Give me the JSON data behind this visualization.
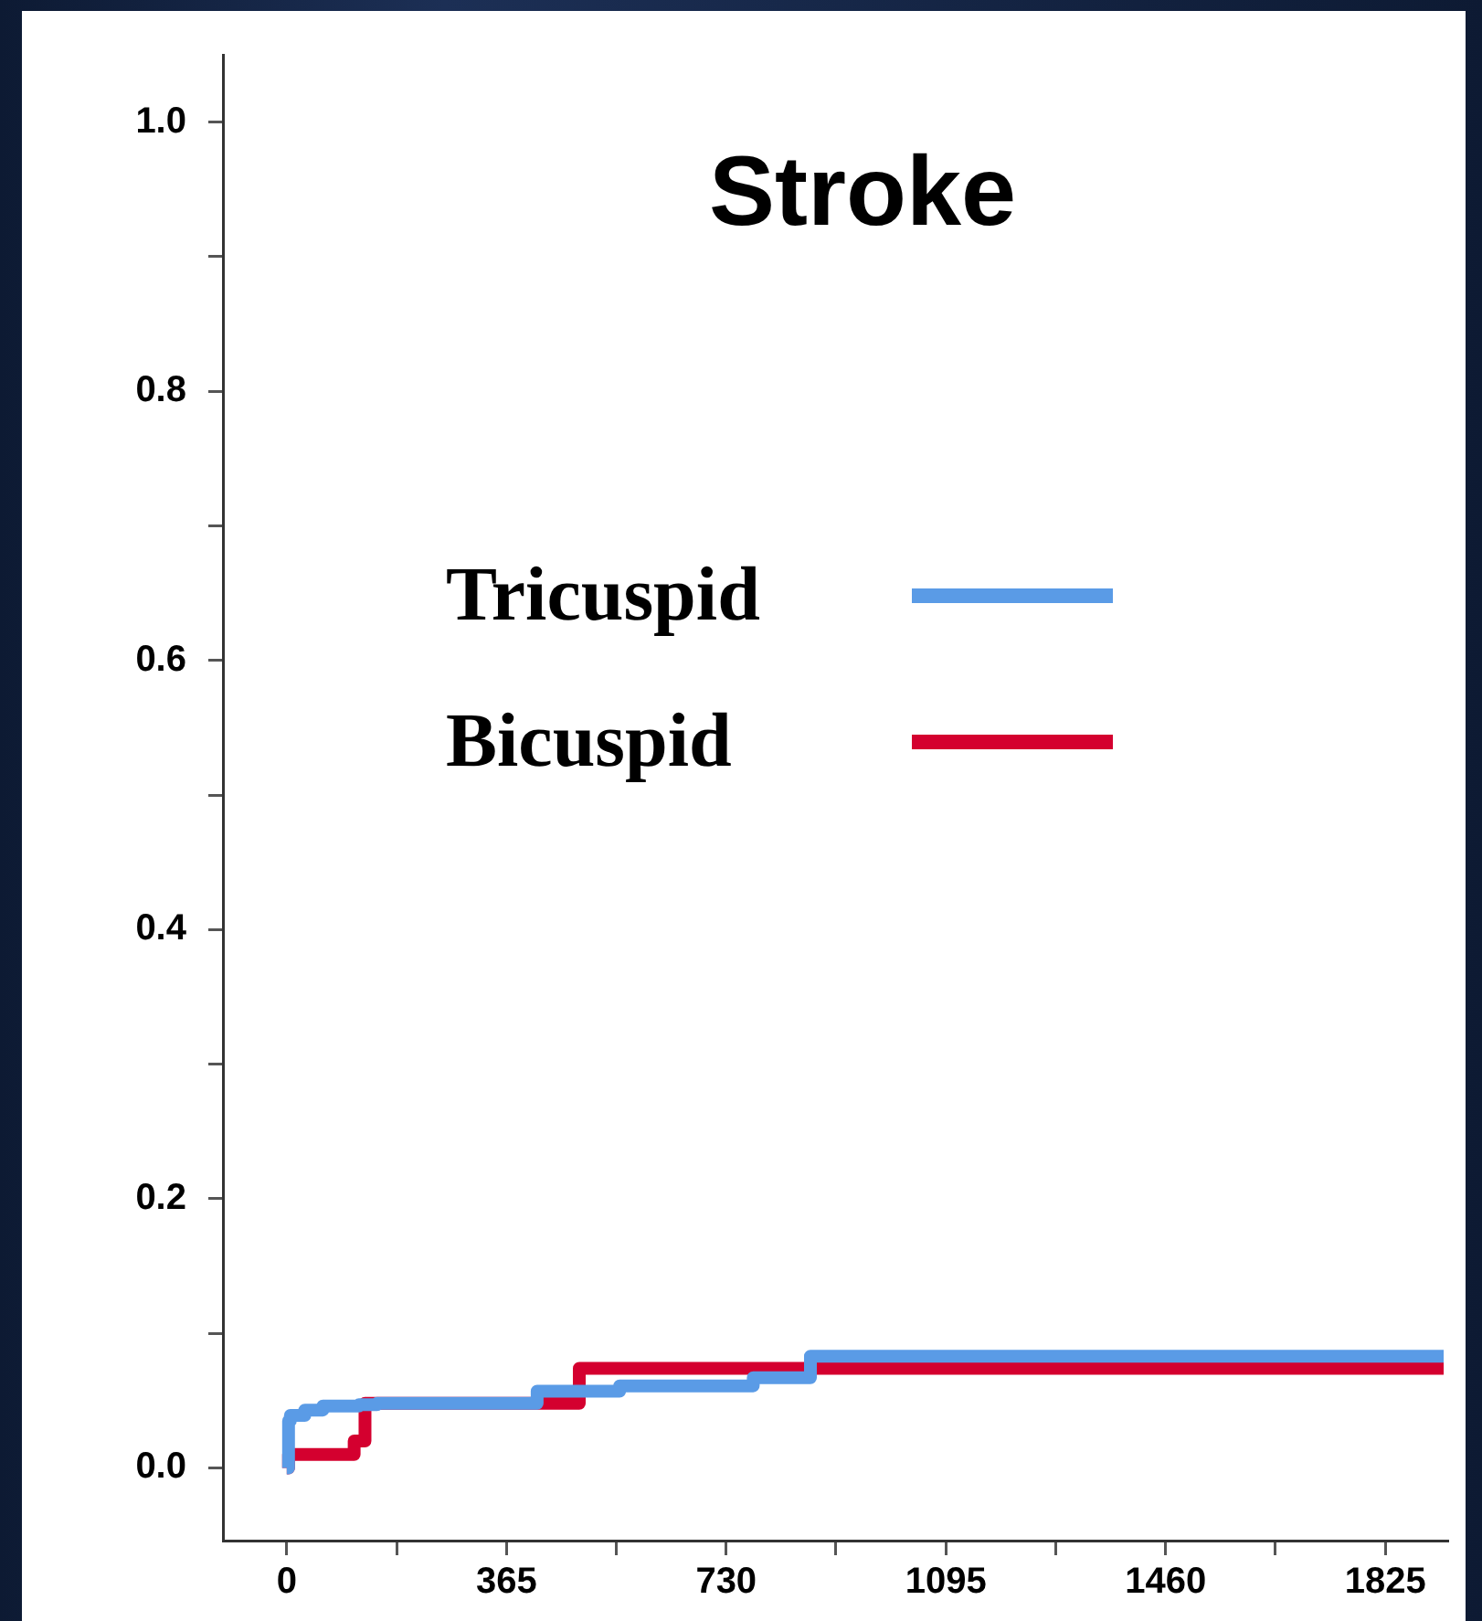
{
  "chart_data": {
    "type": "step",
    "title": "Stroke",
    "series": [
      {
        "name": "Tricuspid",
        "color": "#5a9be6",
        "x": [
          0,
          3,
          6,
          30,
          60,
          120,
          150,
          416,
          500,
          553,
          775,
          870,
          1922
        ],
        "values": [
          0,
          0.035,
          0.039,
          0.043,
          0.046,
          0.047,
          0.048,
          0.057,
          0.057,
          0.061,
          0.067,
          0.083,
          0.083
        ]
      },
      {
        "name": "Bicuspid",
        "color": "#d4002f",
        "x": [
          0,
          3,
          112,
          130,
          486,
          1922
        ],
        "values": [
          0,
          0.01,
          0.02,
          0.048,
          0.074,
          0.074
        ]
      }
    ],
    "xlim": [
      -106,
      1928
    ],
    "xticks": [
      0,
      {
        "value": 182.5,
        "label": null
      },
      365,
      {
        "value": 547.5,
        "label": null
      },
      730,
      {
        "value": 912.5,
        "label": null
      },
      1095,
      {
        "value": 1277.5,
        "label": null
      },
      1460,
      {
        "value": 1642.5,
        "label": null
      },
      1825
    ],
    "ylim": [
      -0.054,
      1.05
    ],
    "yticks": [
      {
        "value": 0,
        "label": "0.0"
      },
      {
        "value": 0.1,
        "label": null
      },
      {
        "value": 0.2,
        "label": "0.2"
      },
      {
        "value": 0.3,
        "label": null
      },
      {
        "value": 0.4,
        "label": "0.4"
      },
      {
        "value": 0.5,
        "label": null
      },
      {
        "value": 0.6,
        "label": "0.6"
      },
      {
        "value": 0.7,
        "label": null
      },
      {
        "value": 0.8,
        "label": "0.8"
      },
      {
        "value": 0.9,
        "label": null
      },
      {
        "value": 1,
        "label": "1.0"
      }
    ],
    "grid": false,
    "legend": "top",
    "line_style": "solid",
    "marker": "none"
  }
}
